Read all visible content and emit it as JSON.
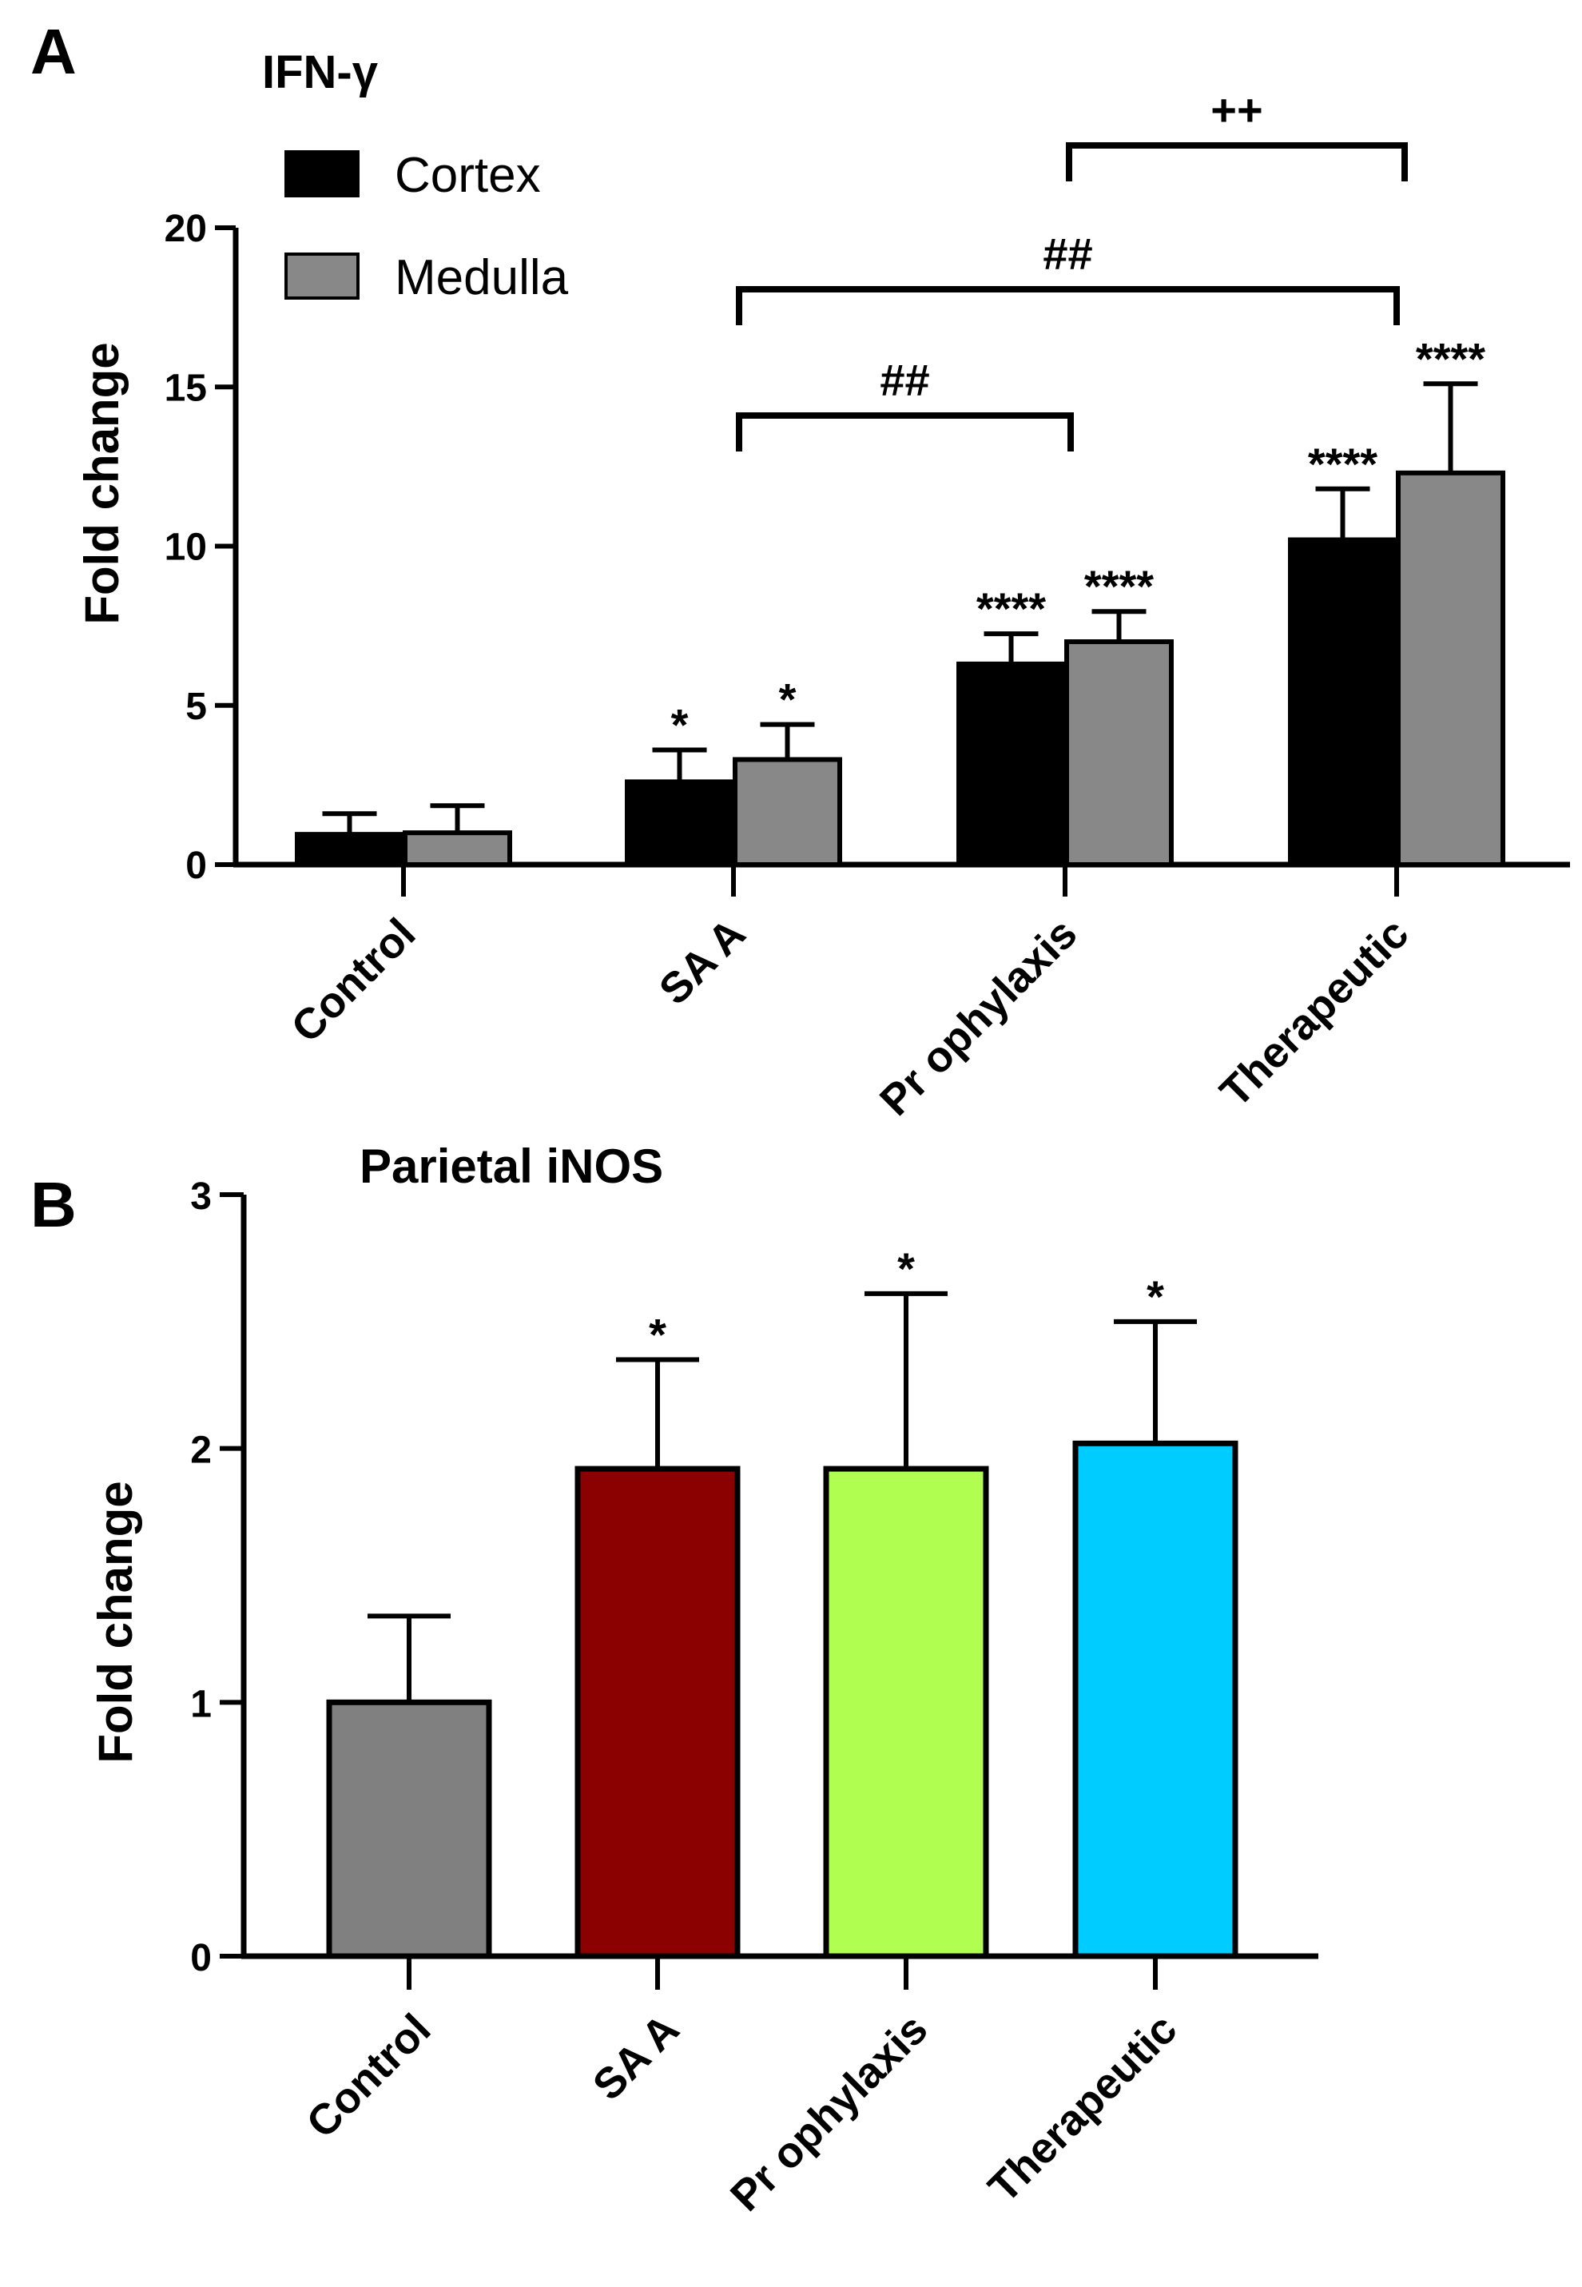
{
  "chart_data": [
    {
      "panel": "A",
      "type": "bar",
      "title": "IFN-γ",
      "xlabel": "",
      "ylabel": "Fold change",
      "ylim": [
        0,
        20
      ],
      "yticks": [
        "0",
        "5",
        "10",
        "15",
        "20"
      ],
      "categories": [
        "Control",
        "SA A",
        "Pr ophylaxis",
        "Therapeutic"
      ],
      "series": [
        {
          "name": "Cortex",
          "color": "#000000",
          "values": [
            0.95,
            2.6,
            6.3,
            10.2
          ],
          "errors": [
            0.65,
            1.0,
            0.95,
            1.6
          ],
          "annotations": [
            "",
            "*",
            "****",
            "****"
          ]
        },
        {
          "name": "Medulla",
          "color": "#888888",
          "values": [
            1.0,
            3.3,
            7.0,
            12.3
          ],
          "errors": [
            0.85,
            1.1,
            0.95,
            2.8
          ],
          "annotations": [
            "",
            "*",
            "****",
            "****"
          ]
        }
      ],
      "legend": "top-left",
      "brackets": [
        {
          "label": "##",
          "from": "SA A",
          "to": "Pr ophylaxis"
        },
        {
          "label": "##",
          "from": "SA A",
          "to": "Therapeutic"
        },
        {
          "label": "++",
          "from": "Pr ophylaxis",
          "to": "Therapeutic"
        }
      ]
    },
    {
      "panel": "B",
      "type": "bar",
      "title": "Parietal iNOS",
      "xlabel": "",
      "ylabel": "Fold change",
      "ylim": [
        0,
        3
      ],
      "yticks": [
        "0",
        "1",
        "2",
        "3"
      ],
      "categories": [
        "Control",
        "SA A",
        "Pr ophylaxis",
        "Therapeutic"
      ],
      "values": [
        1.0,
        1.92,
        1.92,
        2.02
      ],
      "errors": [
        0.34,
        0.43,
        0.69,
        0.48
      ],
      "colors": [
        "#808080",
        "#8b0000",
        "#b0ff50",
        "#00ccff"
      ],
      "annotations": [
        "",
        "*",
        "*",
        "*"
      ]
    }
  ]
}
